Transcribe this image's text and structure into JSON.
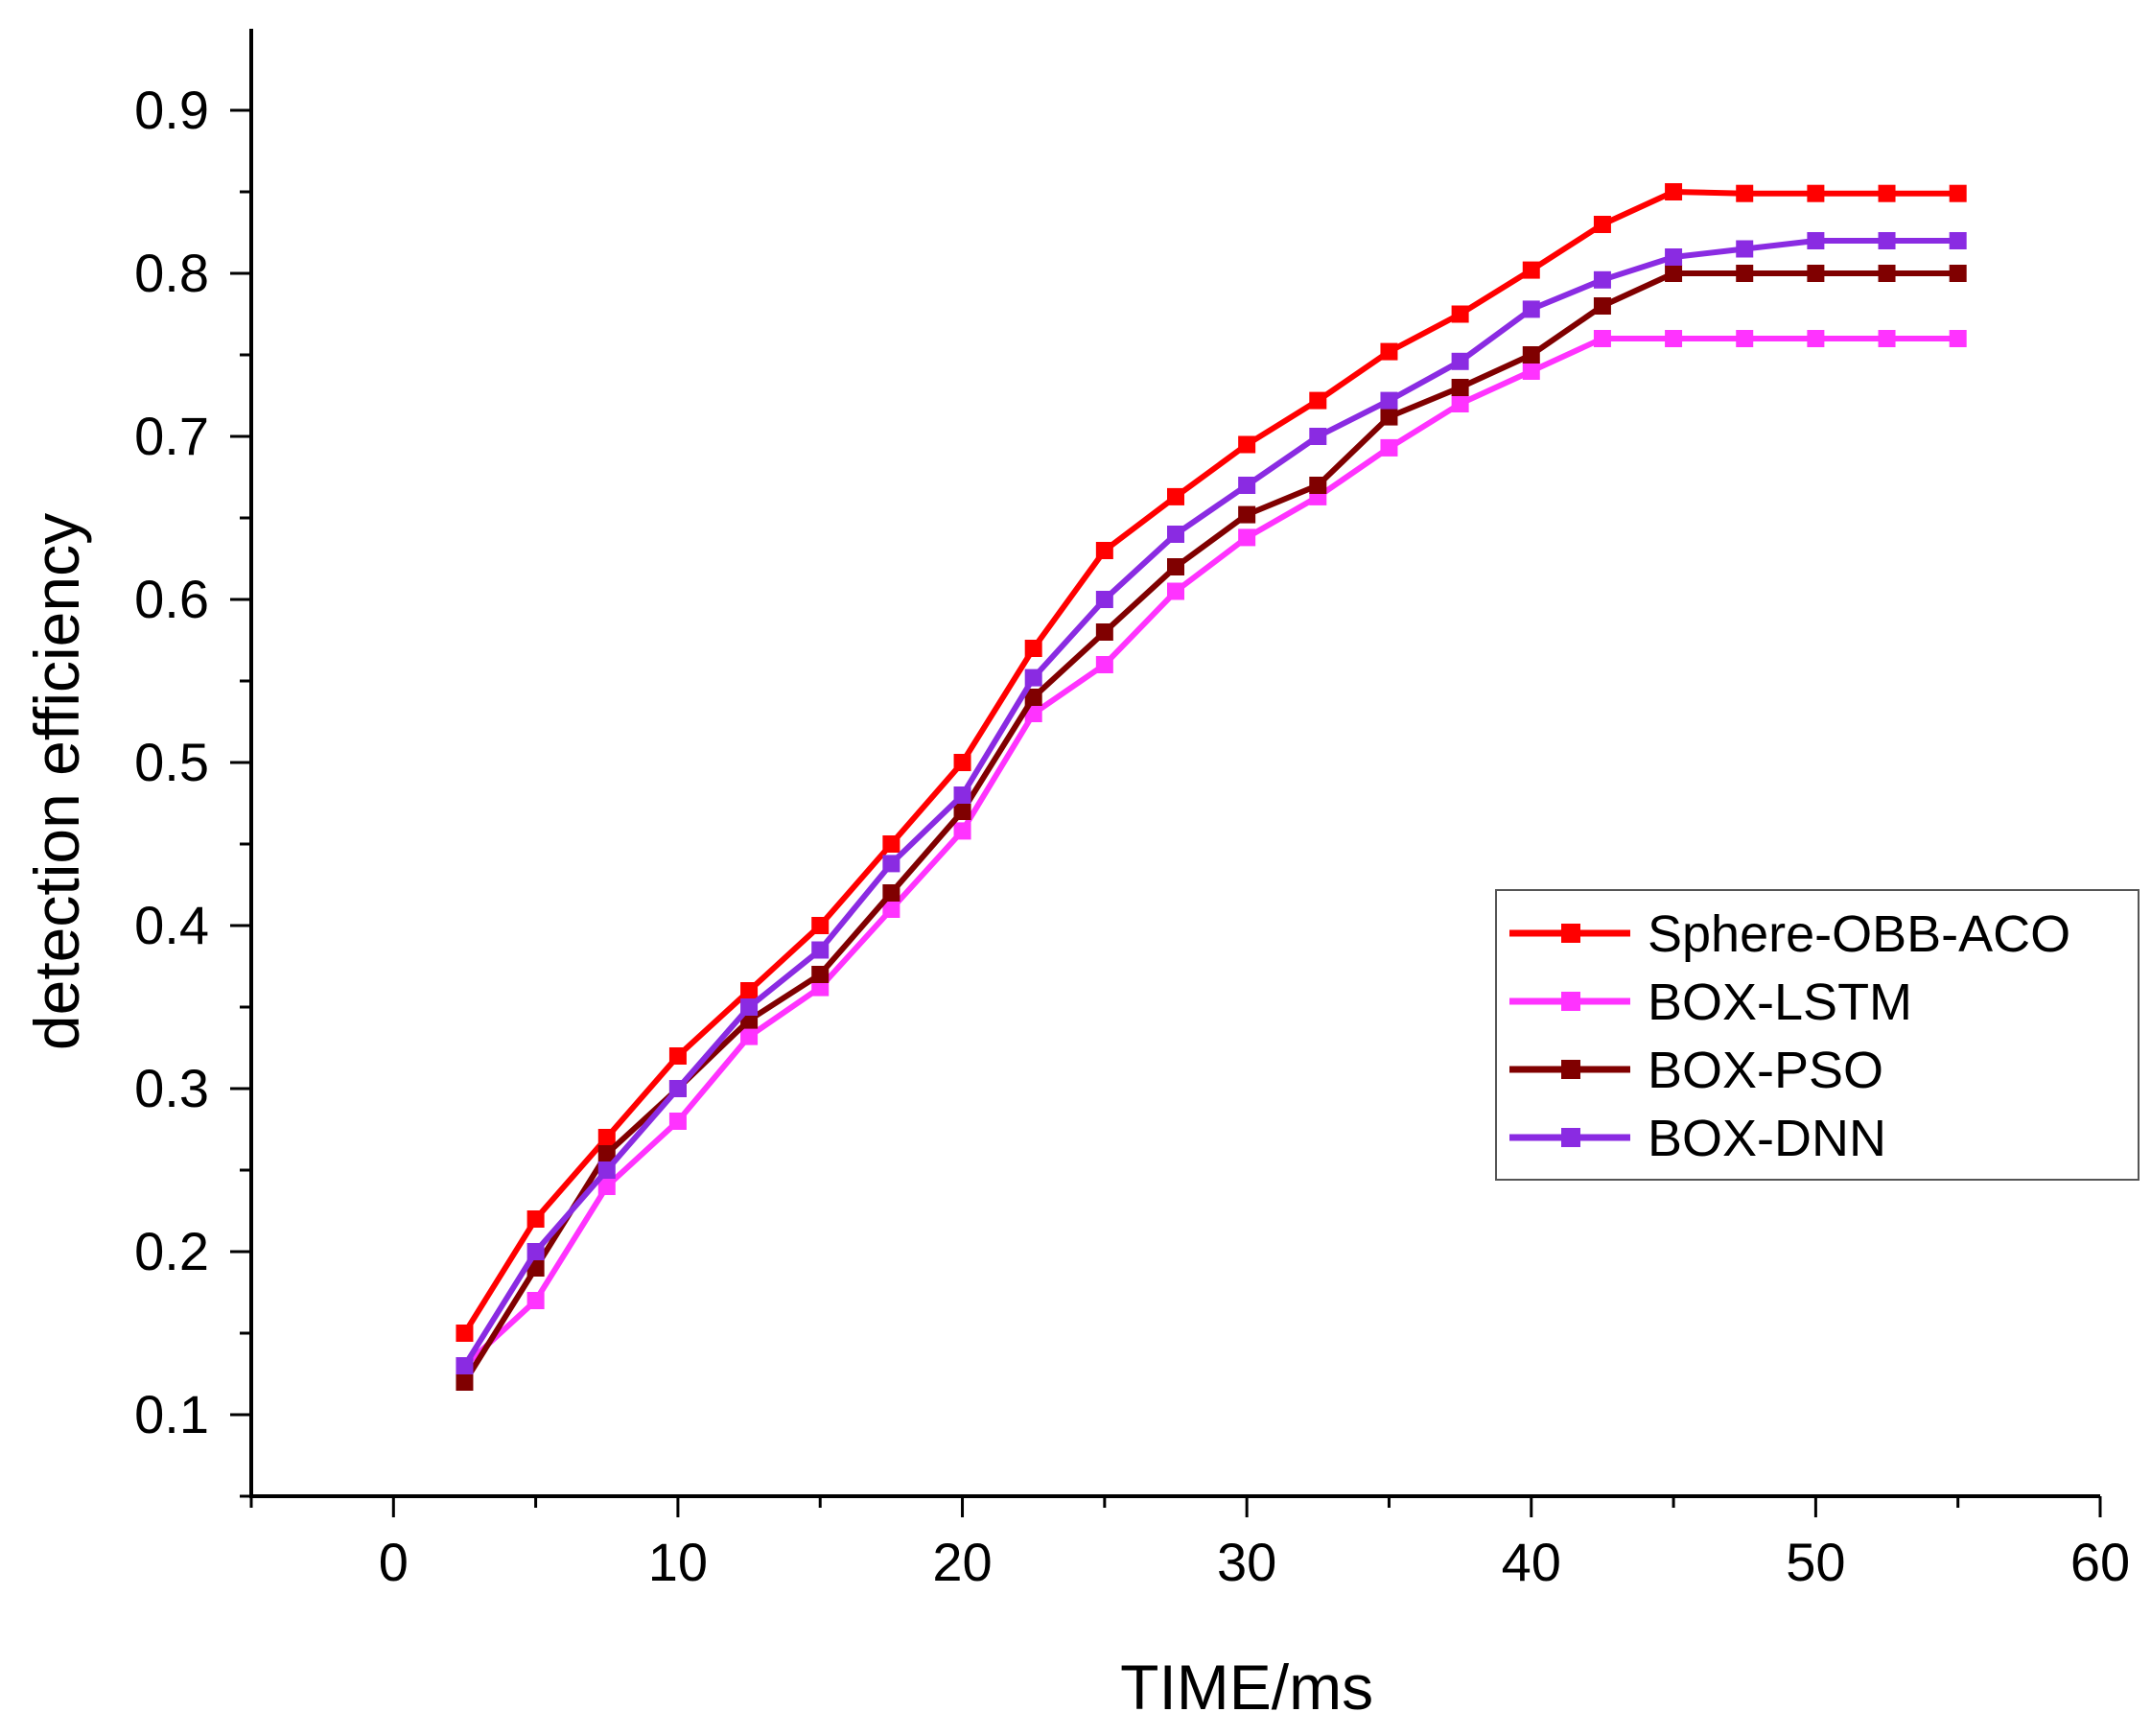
{
  "chart_data": {
    "type": "line",
    "title": "",
    "xlabel": "TIME/ms",
    "ylabel": "detection efficiency",
    "xlim": [
      -5,
      60
    ],
    "ylim": [
      0.05,
      0.95
    ],
    "xticks": [
      0,
      10,
      20,
      30,
      40,
      50,
      60
    ],
    "xtick_labels": [
      "0",
      "10",
      "20",
      "30",
      "40",
      "50",
      "60"
    ],
    "yticks": [
      0.1,
      0.2,
      0.3,
      0.4,
      0.5,
      0.6,
      0.7,
      0.8,
      0.9
    ],
    "ytick_labels": [
      "0.1",
      "0.2",
      "0.3",
      "0.4",
      "0.5",
      "0.6",
      "0.7",
      "0.8",
      "0.9"
    ],
    "grid": false,
    "legend_position": "right",
    "x": [
      2.5,
      5,
      7.5,
      10,
      12.5,
      15,
      17.5,
      20,
      22.5,
      25,
      27.5,
      30,
      32.5,
      35,
      37.5,
      40,
      42.5,
      45,
      47.5,
      50,
      52.5,
      55
    ],
    "series": [
      {
        "name": "Sphere-OBB-ACO",
        "color": "#ff0000",
        "values": [
          0.15,
          0.22,
          0.27,
          0.32,
          0.36,
          0.4,
          0.45,
          0.5,
          0.57,
          0.63,
          0.663,
          0.695,
          0.722,
          0.752,
          0.775,
          0.802,
          0.83,
          0.85,
          0.849,
          0.849,
          0.849,
          0.849
        ]
      },
      {
        "name": "BOX-LSTM",
        "color": "#ff33ff",
        "values": [
          0.13,
          0.17,
          0.24,
          0.28,
          0.332,
          0.362,
          0.41,
          0.458,
          0.53,
          0.56,
          0.605,
          0.638,
          0.663,
          0.693,
          0.72,
          0.74,
          0.76,
          0.76,
          0.76,
          0.76,
          0.76,
          0.76
        ]
      },
      {
        "name": "BOX-PSO",
        "color": "#800000",
        "values": [
          0.12,
          0.19,
          0.26,
          0.3,
          0.342,
          0.37,
          0.42,
          0.47,
          0.54,
          0.58,
          0.62,
          0.652,
          0.67,
          0.712,
          0.73,
          0.75,
          0.78,
          0.8,
          0.8,
          0.8,
          0.8,
          0.8
        ]
      },
      {
        "name": "BOX-DNN",
        "color": "#8a2be2",
        "values": [
          0.13,
          0.2,
          0.25,
          0.3,
          0.35,
          0.385,
          0.438,
          0.48,
          0.552,
          0.6,
          0.64,
          0.67,
          0.7,
          0.722,
          0.746,
          0.778,
          0.796,
          0.81,
          0.815,
          0.82,
          0.82,
          0.82
        ]
      }
    ]
  }
}
